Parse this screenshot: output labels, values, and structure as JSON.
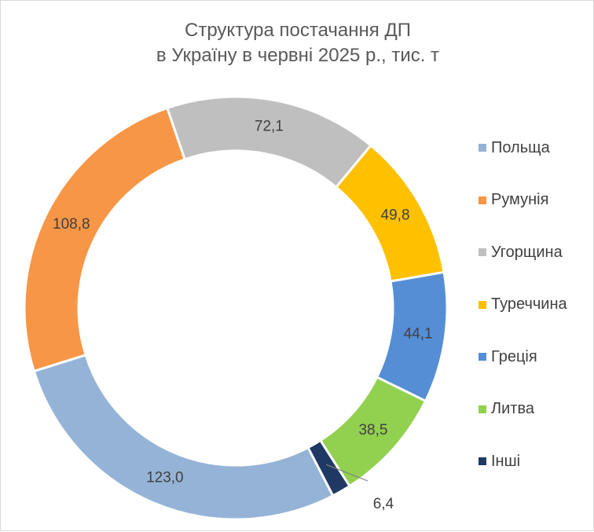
{
  "chart_data": {
    "type": "pie",
    "variant": "donut",
    "title_lines": [
      "Структура постачання ДП",
      "в Україну в червні 2025 р., тис. т"
    ],
    "series": [
      {
        "name": "Польща",
        "value": 123.0,
        "label": "123,0",
        "color": "#95B3D7"
      },
      {
        "name": "Румунія",
        "value": 108.8,
        "label": "108,8",
        "color": "#F79646"
      },
      {
        "name": "Угорщина",
        "value": 72.1,
        "label": "72,1",
        "color": "#BFBFBF"
      },
      {
        "name": "Туреччина",
        "value": 49.8,
        "label": "49,8",
        "color": "#FFC000"
      },
      {
        "name": "Греція",
        "value": 44.1,
        "label": "44,1",
        "color": "#558ED5"
      },
      {
        "name": "Литва",
        "value": 38.5,
        "label": "38,5",
        "color": "#92D050"
      },
      {
        "name": "Інші",
        "value": 6.4,
        "label": "6,4",
        "color": "#1F3864"
      }
    ],
    "legend_position": "right"
  }
}
